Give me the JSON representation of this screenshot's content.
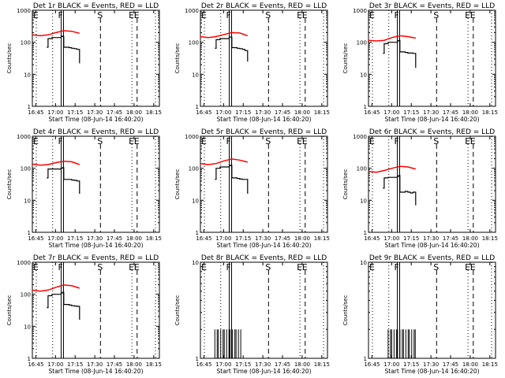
{
  "chart_data": {
    "type": "line",
    "layout": "3x3 grid of panels",
    "shared": {
      "xlabel": "Start Time (08-Jun-14 16:40:20)",
      "ylabel": "Counts/sec",
      "x_ticks": [
        "16:45",
        "17:00",
        "17:15",
        "17:30",
        "17:45",
        "18:00",
        "18:15"
      ],
      "x_tick_minutes": [
        4.67,
        19.67,
        34.67,
        49.67,
        64.67,
        79.67,
        94.67
      ],
      "xlim_minutes": [
        2,
        99
      ],
      "event_lines": [
        {
          "label": "E",
          "minute": 5,
          "style": "dotted"
        },
        {
          "label": "F",
          "minute": 24,
          "style": "solid"
        },
        {
          "label": "S",
          "minute": 54,
          "style": "dashed"
        },
        {
          "label": "E",
          "minute": 78,
          "style": "dotted"
        },
        {
          "label": "E",
          "minute": 82,
          "style": "dashed"
        },
        {
          "label": "",
          "minute": 17.5,
          "style": "dotted"
        },
        {
          "label": "",
          "minute": 96,
          "style": "dotted"
        }
      ],
      "colors": {
        "events": "#000000",
        "lld": "#ff0000"
      }
    },
    "panels": [
      {
        "title": "Det 1r BLACK = Events, RED = LLD",
        "ylim": [
          1,
          1000
        ],
        "yticks": [
          "1",
          "10",
          "100",
          "1000"
        ],
        "red": {
          "x": [
            2,
            8,
            14,
            20,
            26,
            32,
            38
          ],
          "y": [
            170,
            160,
            170,
            200,
            230,
            220,
            190
          ]
        },
        "black": {
          "x": [
            13,
            14,
            17,
            24,
            25,
            26,
            30,
            32,
            34,
            36,
            38,
            38
          ],
          "y": [
            70,
            130,
            140,
            155,
            150,
            70,
            68,
            65,
            63,
            60,
            60,
            22
          ]
        }
      },
      {
        "title": "Det 2r BLACK = Events, RED = LLD",
        "ylim": [
          1,
          1000
        ],
        "yticks": [
          "1",
          "10",
          "100",
          "1000"
        ],
        "red": {
          "x": [
            2,
            8,
            14,
            20,
            26,
            32,
            38
          ],
          "y": [
            150,
            140,
            150,
            175,
            200,
            195,
            160
          ]
        },
        "black": {
          "x": [
            13,
            14,
            17,
            24,
            25,
            26,
            30,
            32,
            34,
            36,
            38,
            38
          ],
          "y": [
            65,
            120,
            130,
            145,
            145,
            68,
            65,
            63,
            60,
            55,
            40,
            25
          ]
        }
      },
      {
        "title": "Det 3r BLACK = Events, RED = LLD",
        "ylim": [
          1,
          1000
        ],
        "yticks": [
          "1",
          "10",
          "100",
          "1000"
        ],
        "red": {
          "x": [
            2,
            8,
            14,
            20,
            26,
            32,
            38
          ],
          "y": [
            115,
            110,
            115,
            140,
            160,
            150,
            135
          ]
        },
        "black": {
          "x": [
            13,
            14,
            17,
            24,
            25,
            26,
            30,
            32,
            34,
            36,
            38,
            38
          ],
          "y": [
            45,
            90,
            100,
            110,
            115,
            50,
            48,
            46,
            46,
            45,
            45,
            16
          ]
        }
      },
      {
        "title": "Det 4r BLACK = Events, RED = LLD",
        "ylim": [
          1,
          1000
        ],
        "yticks": [
          "1",
          "10",
          "100",
          "1000"
        ],
        "red": {
          "x": [
            2,
            8,
            14,
            20,
            26,
            32,
            38
          ],
          "y": [
            135,
            125,
            130,
            150,
            165,
            160,
            130
          ]
        },
        "black": {
          "x": [
            13,
            14,
            17,
            24,
            25,
            26,
            30,
            32,
            34,
            36,
            38,
            38
          ],
          "y": [
            50,
            95,
            95,
            100,
            105,
            45,
            45,
            43,
            42,
            40,
            38,
            16
          ]
        }
      },
      {
        "title": "Det 5r BLACK = Events, RED = LLD",
        "ylim": [
          1,
          1000
        ],
        "yticks": [
          "1",
          "10",
          "100",
          "1000"
        ],
        "red": {
          "x": [
            2,
            8,
            14,
            20,
            26,
            32,
            38
          ],
          "y": [
            140,
            130,
            140,
            170,
            195,
            180,
            155
          ]
        },
        "black": {
          "x": [
            13,
            14,
            17,
            24,
            25,
            26,
            30,
            32,
            34,
            36,
            38,
            38
          ],
          "y": [
            45,
            100,
            110,
            120,
            125,
            50,
            48,
            46,
            45,
            45,
            40,
            16
          ]
        }
      },
      {
        "title": "Det 6r BLACK = Events, RED = LLD",
        "ylim": [
          1,
          1000
        ],
        "yticks": [
          "1",
          "10",
          "100",
          "1000"
        ],
        "red": {
          "x": [
            2,
            8,
            14,
            20,
            26,
            32,
            38
          ],
          "y": [
            80,
            75,
            85,
            100,
            115,
            110,
            95
          ]
        },
        "black": {
          "x": [
            13,
            14,
            17,
            24,
            25,
            26,
            30,
            32,
            34,
            36,
            38,
            38
          ],
          "y": [
            24,
            50,
            52,
            55,
            60,
            18,
            19,
            18,
            17,
            18,
            17,
            7
          ]
        }
      },
      {
        "title": "Det 7r BLACK = Events, RED = LLD",
        "ylim": [
          1,
          1000
        ],
        "yticks": [
          "1",
          "10",
          "100",
          "1000"
        ],
        "red": {
          "x": [
            2,
            8,
            14,
            20,
            26,
            32,
            38
          ],
          "y": [
            135,
            125,
            135,
            165,
            195,
            185,
            155
          ]
        },
        "black": {
          "x": [
            13,
            14,
            17,
            24,
            25,
            26,
            30,
            32,
            34,
            36,
            38,
            38
          ],
          "y": [
            38,
            90,
            100,
            110,
            115,
            48,
            46,
            44,
            43,
            42,
            40,
            16
          ]
        }
      },
      {
        "title": "Det 8r BLACK = Events, RED = LLD",
        "ylim": [
          1,
          10
        ],
        "yticks": [
          "1",
          "10"
        ],
        "red": null,
        "black_bars": {
          "x_range": [
            13,
            33
          ],
          "values": [
            1,
            2
          ]
        }
      },
      {
        "title": "Det 9r BLACK = Events, RED = LLD",
        "ylim": [
          1,
          10
        ],
        "yticks": [
          "1",
          "10"
        ],
        "red": null,
        "black_bars": {
          "x_range": [
            17,
            38
          ],
          "values": [
            1,
            2
          ]
        }
      }
    ]
  }
}
